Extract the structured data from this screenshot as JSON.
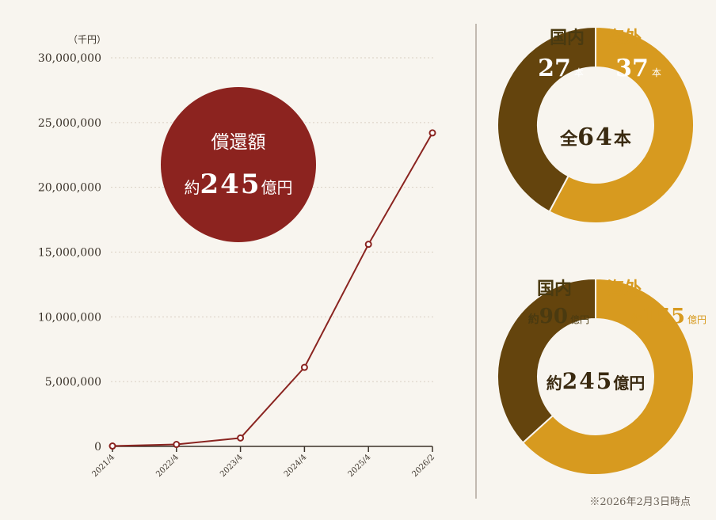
{
  "chart_data": [
    {
      "type": "line",
      "ylabel": "（千円）",
      "ylim": [
        0,
        30000000
      ],
      "y_ticks": [
        "0",
        "5,000,000",
        "10,000,000",
        "15,000,000",
        "20,000,000",
        "25,000,000",
        "30,000,000"
      ],
      "y_tick_values": [
        0,
        5000000,
        10000000,
        15000000,
        20000000,
        25000000,
        30000000
      ],
      "categories": [
        "2021/4",
        "2022/4",
        "2023/4",
        "2024/4",
        "2025/4",
        "2026/2"
      ],
      "values": [
        30000,
        150000,
        650000,
        6100000,
        15600000,
        24200000
      ],
      "grid": true,
      "line_color": "#8a2420",
      "callout": {
        "line1": "償還額",
        "prefix": "約",
        "number": "245",
        "unit": "億円",
        "color": "#8c231f"
      }
    },
    {
      "type": "pie",
      "donut": true,
      "total_label": {
        "prefix": "全",
        "number": "64",
        "unit": "本"
      },
      "slices": [
        {
          "name": "国内",
          "value": 27,
          "number": "27",
          "unit": "本",
          "color": "#64440d"
        },
        {
          "name": "海外",
          "value": 37,
          "number": "37",
          "unit": "本",
          "color": "#d79a1f"
        }
      ]
    },
    {
      "type": "pie",
      "donut": true,
      "total_label": {
        "prefix": "約",
        "number": "245",
        "unit": "億円"
      },
      "slices": [
        {
          "name": "国内",
          "value": 90,
          "prefix": "約",
          "number": "90",
          "unit": "億円",
          "color": "#64440d"
        },
        {
          "name": "海外",
          "value": 155,
          "prefix": "約",
          "number": "155",
          "unit": "億円",
          "color": "#d79a1f"
        }
      ]
    }
  ],
  "footnote": "※2026年2月3日時点"
}
